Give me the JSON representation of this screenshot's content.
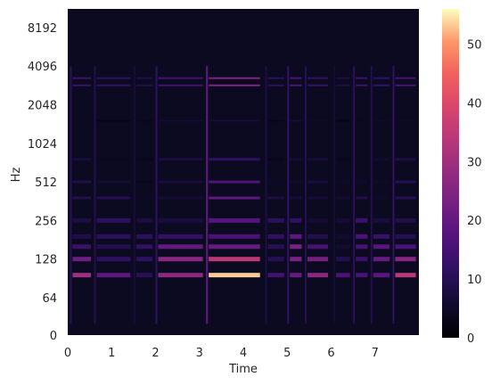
{
  "chart_data": {
    "type": "heatmap",
    "title": "",
    "xlabel": "Time",
    "ylabel": "Hz",
    "x_ticks": [
      "0",
      "1",
      "2",
      "3",
      "4",
      "5",
      "6",
      "7"
    ],
    "y_ticks": [
      "0",
      "64",
      "128",
      "256",
      "512",
      "1024",
      "2048",
      "4096",
      "8192"
    ],
    "xlim": [
      0,
      8
    ],
    "y_scale": "log2",
    "colormap": "magma",
    "colorbar": {
      "range": [
        0,
        56
      ],
      "ticks": [
        "0",
        "10",
        "20",
        "30",
        "40",
        "50"
      ]
    },
    "grid": false,
    "legend": "none",
    "harmonic_bands_hz": [
      96,
      128,
      160,
      192,
      256,
      384,
      512,
      768,
      1536,
      2900,
      3300
    ],
    "notes": [
      {
        "start": 0.05,
        "end": 0.55,
        "peak": 30
      },
      {
        "start": 0.6,
        "end": 1.45,
        "peak": 26
      },
      {
        "start": 1.5,
        "end": 1.95,
        "peak": 20
      },
      {
        "start": 2.0,
        "end": 3.1,
        "peak": 32
      },
      {
        "start": 3.15,
        "end": 4.4,
        "peak": 55
      },
      {
        "start": 4.5,
        "end": 4.95,
        "peak": 24
      },
      {
        "start": 5.0,
        "end": 5.35,
        "peak": 36
      },
      {
        "start": 5.4,
        "end": 5.95,
        "peak": 28
      },
      {
        "start": 6.05,
        "end": 6.45,
        "peak": 18
      },
      {
        "start": 6.5,
        "end": 6.85,
        "peak": 30
      },
      {
        "start": 6.9,
        "end": 7.35,
        "peak": 27
      },
      {
        "start": 7.4,
        "end": 7.95,
        "peak": 34
      }
    ]
  }
}
